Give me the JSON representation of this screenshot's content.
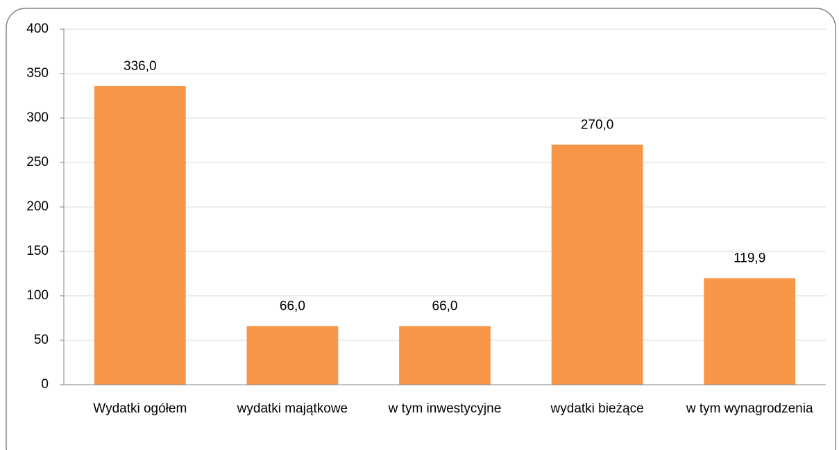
{
  "chart_data": {
    "type": "bar",
    "categories": [
      "Wydatki ogółem",
      "wydatki majątkowe",
      "w tym inwestycyjne",
      "wydatki bieżące",
      "w tym wynagrodzenia"
    ],
    "values": [
      336.0,
      66.0,
      66.0,
      270.0,
      119.9
    ],
    "value_labels": [
      "336,0",
      "66,0",
      "66,0",
      "270,0",
      "119,9"
    ],
    "color": "#f79646",
    "ylim": [
      0,
      400
    ],
    "yticks": [
      0,
      50,
      100,
      150,
      200,
      250,
      300,
      350,
      400
    ],
    "grid": true
  }
}
